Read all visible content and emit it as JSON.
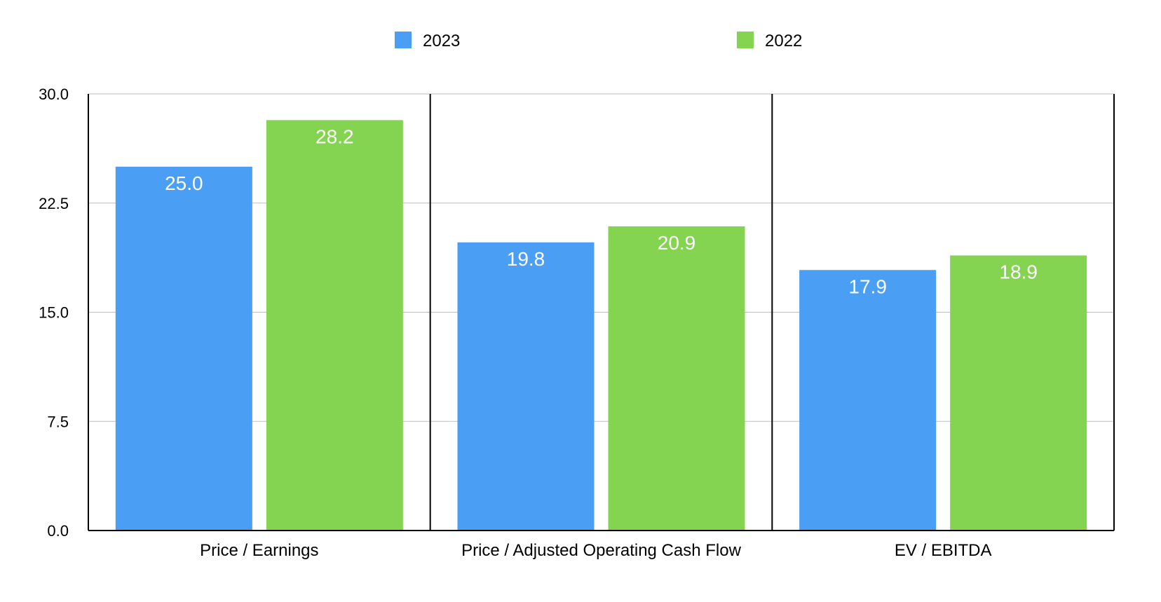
{
  "chart_data": {
    "type": "bar",
    "title": "",
    "xlabel": "",
    "ylabel": "",
    "categories": [
      "Price / Earnings",
      "Price / Adjusted Operating Cash Flow",
      "EV / EBITDA"
    ],
    "series": [
      {
        "name": "2023",
        "values": [
          25.0,
          19.8,
          17.9
        ],
        "color": "#4a9ff5",
        "labels": [
          "25.0",
          "19.8",
          "17.9"
        ]
      },
      {
        "name": "2022",
        "values": [
          28.2,
          20.9,
          18.9
        ],
        "color": "#84d451",
        "labels": [
          "28.2",
          "20.9",
          "18.9"
        ]
      }
    ],
    "ylim": [
      0,
      30
    ],
    "yticks": [
      0,
      7.5,
      15,
      22.5,
      30
    ],
    "ytick_labels": [
      "0.0",
      "7.5",
      "15.0",
      "22.5",
      "30.0"
    ],
    "grid": true,
    "legend_position": "top-center",
    "category_separators": true
  }
}
